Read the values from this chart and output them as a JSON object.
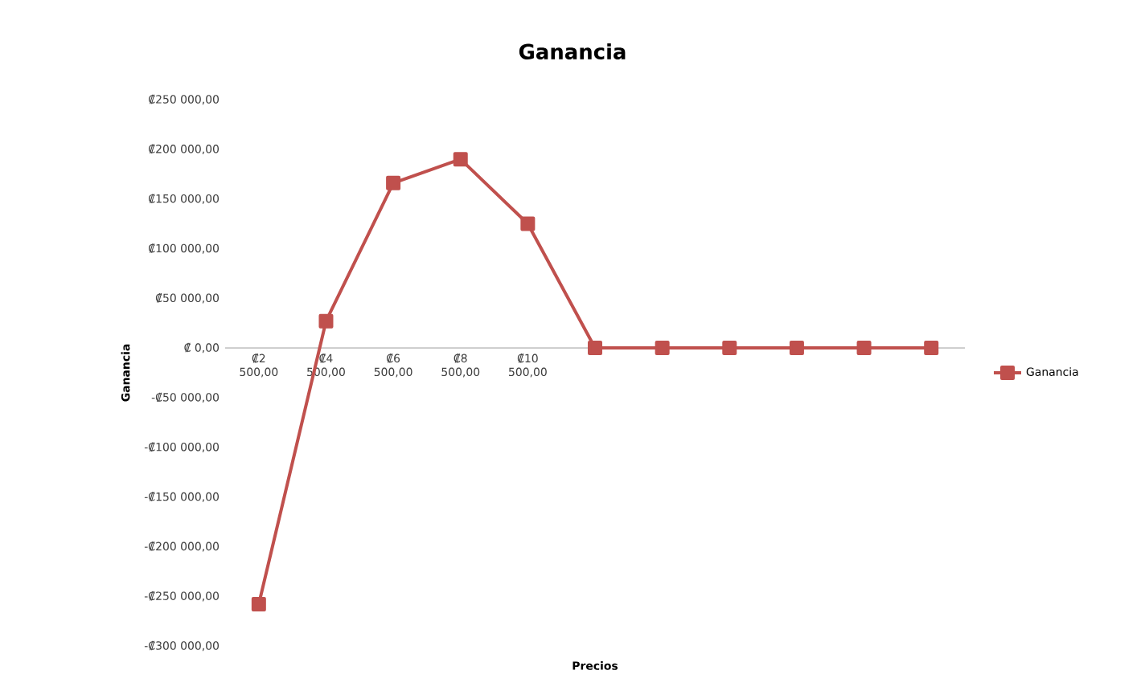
{
  "chart_data": {
    "type": "line",
    "title": "Ganancia",
    "xlabel": "Precios",
    "ylabel": "Ganancia",
    "categories": [
      "₡2 500,00",
      "₡4 500,00",
      "₡6 500,00",
      "₡8 500,00",
      "₡10 500,00",
      null,
      null,
      null,
      null,
      null,
      null
    ],
    "series": [
      {
        "name": "Ganancia",
        "color": "#c0504d",
        "values": [
          -258000,
          27000,
          166000,
          190000,
          125000,
          0,
          0,
          0,
          0,
          0,
          0
        ]
      }
    ],
    "ylim": [
      -300000,
      250000
    ],
    "yticks": [
      {
        "value": 250000,
        "label": "₡250 000,00"
      },
      {
        "value": 200000,
        "label": "₡200 000,00"
      },
      {
        "value": 150000,
        "label": "₡150 000,00"
      },
      {
        "value": 100000,
        "label": "₡100 000,00"
      },
      {
        "value": 50000,
        "label": "₡50 000,00"
      },
      {
        "value": 0,
        "label": "₡ 0,00"
      },
      {
        "value": -50000,
        "label": "-₡50 000,00"
      },
      {
        "value": -100000,
        "label": "-₡100 000,00"
      },
      {
        "value": -150000,
        "label": "-₡150 000,00"
      },
      {
        "value": -200000,
        "label": "-₡200 000,00"
      },
      {
        "value": -250000,
        "label": "-₡250 000,00"
      },
      {
        "value": -300000,
        "label": "-₡300 000,00"
      }
    ],
    "marker": "square",
    "line_style": "solid",
    "legend": "right",
    "grid": false
  }
}
